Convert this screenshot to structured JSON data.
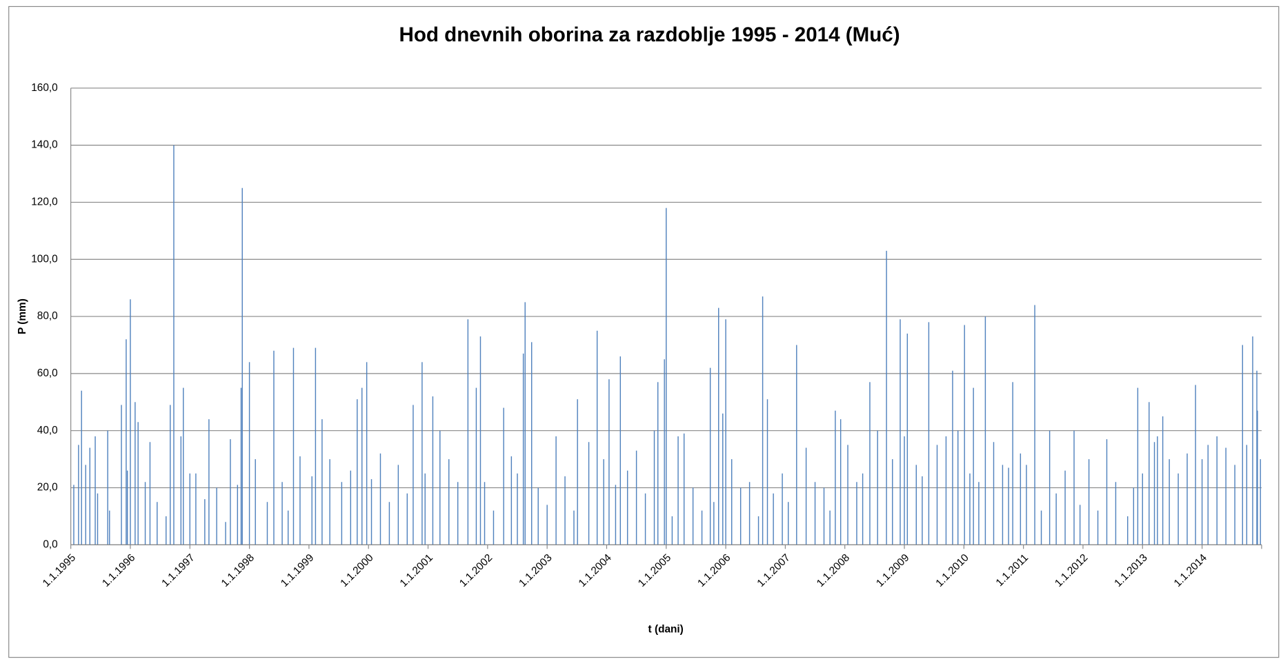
{
  "chart_data": {
    "type": "bar",
    "title": "Hod dnevnih oborina za razdoblje 1995 - 2014 (Muć)",
    "x_label": "t (dani)",
    "y_label": "P (mm)",
    "color": "#4f81bd",
    "grid": true,
    "xlim": [
      1995,
      2015
    ],
    "ylim": [
      0,
      160
    ],
    "xticks": [
      {
        "value": 1995,
        "label": "1.1.1995"
      },
      {
        "value": 1996,
        "label": "1.1.1996"
      },
      {
        "value": 1997,
        "label": "1.1.1997"
      },
      {
        "value": 1998,
        "label": "1.1.1998"
      },
      {
        "value": 1999,
        "label": "1.1.1999"
      },
      {
        "value": 2000,
        "label": "1.1.2000"
      },
      {
        "value": 2001,
        "label": "1.1.2001"
      },
      {
        "value": 2002,
        "label": "1.1.2002"
      },
      {
        "value": 2003,
        "label": "1.1.2003"
      },
      {
        "value": 2004,
        "label": "1.1.2004"
      },
      {
        "value": 2005,
        "label": "1.1.2005"
      },
      {
        "value": 2006,
        "label": "1.1.2006"
      },
      {
        "value": 2007,
        "label": "1.1.2007"
      },
      {
        "value": 2008,
        "label": "1.1.2008"
      },
      {
        "value": 2009,
        "label": "1.1.2009"
      },
      {
        "value": 2010,
        "label": "1.1.2010"
      },
      {
        "value": 2011,
        "label": "1.1.2011"
      },
      {
        "value": 2012,
        "label": "1.1.2012"
      },
      {
        "value": 2013,
        "label": "1.1.2013"
      },
      {
        "value": 2014,
        "label": "1.1.2014"
      }
    ],
    "yticks": [
      {
        "value": 0,
        "label": "0,0"
      },
      {
        "value": 20,
        "label": "20,0"
      },
      {
        "value": 40,
        "label": "40,0"
      },
      {
        "value": 60,
        "label": "60,0"
      },
      {
        "value": 80,
        "label": "80,0"
      },
      {
        "value": 100,
        "label": "100,0"
      },
      {
        "value": 120,
        "label": "120,0"
      },
      {
        "value": 140,
        "label": "140,0"
      },
      {
        "value": 160,
        "label": "160,0"
      }
    ],
    "x": [
      1995.13,
      1995.18,
      1995.32,
      1995.41,
      1995.62,
      1995.85,
      1995.93,
      1996.0,
      1996.08,
      1996.13,
      1996.33,
      1996.67,
      1996.73,
      1996.89,
      1997.0,
      1997.32,
      1997.68,
      1997.86,
      1997.88,
      1998.0,
      1998.41,
      1998.74,
      1999.11,
      1999.22,
      1999.81,
      1999.89,
      1999.97,
      2000.75,
      2000.9,
      2001.08,
      2001.67,
      2001.81,
      2001.88,
      2002.27,
      2002.6,
      2002.63,
      2002.74,
      2003.51,
      2003.84,
      2004.04,
      2004.23,
      2004.86,
      2004.97,
      2005.0,
      2005.3,
      2005.74,
      2005.88,
      2006.0,
      2006.62,
      2006.7,
      2007.19,
      2007.84,
      2007.93,
      2008.42,
      2008.7,
      2008.93,
      2009.05,
      2009.41,
      2009.81,
      2010.01,
      2010.16,
      2010.36,
      2010.82,
      2011.19,
      2011.44,
      2011.85,
      2012.92,
      2013.11,
      2013.34,
      2013.89,
      2014.68,
      2014.85,
      2014.92,
      2014.93,
      1995.05,
      1995.25,
      1995.45,
      1995.65,
      1995.95,
      1996.25,
      1996.45,
      1996.6,
      1996.85,
      1997.1,
      1997.25,
      1997.45,
      1997.6,
      1997.8,
      1998.1,
      1998.3,
      1998.55,
      1998.65,
      1998.85,
      1999.05,
      1999.35,
      1999.55,
      1999.7,
      2000.05,
      2000.2,
      2000.35,
      2000.5,
      2000.65,
      2000.95,
      2001.2,
      2001.35,
      2001.5,
      2001.95,
      2002.1,
      2002.4,
      2002.5,
      2002.85,
      2003.0,
      2003.15,
      2003.3,
      2003.45,
      2003.7,
      2003.95,
      2004.15,
      2004.35,
      2004.5,
      2004.65,
      2004.8,
      2005.1,
      2005.2,
      2005.45,
      2005.6,
      2005.8,
      2005.95,
      2006.1,
      2006.25,
      2006.4,
      2006.55,
      2006.8,
      2006.95,
      2007.05,
      2007.35,
      2007.5,
      2007.65,
      2007.75,
      2008.05,
      2008.2,
      2008.3,
      2008.55,
      2008.8,
      2009.0,
      2009.2,
      2009.3,
      2009.55,
      2009.7,
      2009.9,
      2010.1,
      2010.25,
      2010.5,
      2010.65,
      2010.75,
      2010.95,
      2011.05,
      2011.3,
      2011.55,
      2011.7,
      2011.95,
      2012.1,
      2012.25,
      2012.4,
      2012.55,
      2012.75,
      2012.85,
      2013.0,
      2013.2,
      2013.25,
      2013.45,
      2013.6,
      2013.75,
      2014.0,
      2014.1,
      2014.25,
      2014.4,
      2014.55,
      2014.75,
      2014.98
    ],
    "values": [
      35,
      54,
      34,
      38,
      40,
      49,
      72,
      86,
      50,
      43,
      36,
      49,
      140,
      55,
      25,
      44,
      37,
      55,
      125,
      64,
      68,
      69,
      69,
      44,
      51,
      55,
      64,
      49,
      64,
      52,
      79,
      55,
      73,
      48,
      67,
      85,
      71,
      51,
      75,
      58,
      66,
      57,
      65,
      118,
      39,
      62,
      83,
      79,
      87,
      51,
      70,
      47,
      44,
      57,
      103,
      79,
      74,
      78,
      61,
      77,
      55,
      80,
      57,
      84,
      40,
      40,
      55,
      50,
      45,
      56,
      70,
      73,
      61,
      47,
      21,
      28,
      18,
      12,
      26,
      22,
      15,
      10,
      38,
      25,
      16,
      20,
      8,
      21,
      30,
      15,
      22,
      12,
      31,
      24,
      30,
      22,
      26,
      23,
      32,
      15,
      28,
      18,
      25,
      40,
      30,
      22,
      22,
      12,
      31,
      25,
      20,
      14,
      38,
      24,
      12,
      36,
      30,
      21,
      26,
      33,
      18,
      40,
      10,
      38,
      20,
      12,
      15,
      46,
      30,
      20,
      22,
      10,
      18,
      25,
      15,
      34,
      22,
      20,
      12,
      35,
      22,
      25,
      40,
      30,
      38,
      28,
      24,
      35,
      38,
      40,
      25,
      22,
      36,
      28,
      27,
      32,
      28,
      12,
      18,
      26,
      14,
      30,
      12,
      37,
      22,
      10,
      20,
      25,
      36,
      38,
      30,
      25,
      32,
      30,
      35,
      38,
      34,
      28,
      35,
      30
    ]
  }
}
